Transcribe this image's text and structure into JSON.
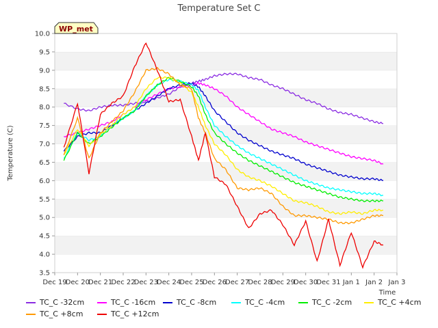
{
  "chart_data": {
    "type": "line",
    "title": "Temperature Set C",
    "badge": "WP_met",
    "xlabel": "Time",
    "ylabel": "Temperature (C)",
    "ylim": [
      3.5,
      10.0
    ],
    "xlim": [
      "Dec 19",
      "Jan 3"
    ],
    "grid": "horizontal bands",
    "legend": "bottom",
    "x_ticks": [
      "Dec 19",
      "Dec 20",
      "Dec 21",
      "Dec 22",
      "Dec 23",
      "Dec 24",
      "Dec 25",
      "Dec 26",
      "Dec 27",
      "Dec 28",
      "Dec 29",
      "Dec 30",
      "Dec 31",
      "Jan 1",
      "Jan 2",
      "Jan 3"
    ],
    "y_ticks": [
      "3.5",
      "4.0",
      "4.5",
      "5.0",
      "5.5",
      "6.0",
      "6.5",
      "7.0",
      "7.5",
      "8.0",
      "8.5",
      "9.0",
      "9.5",
      "10.0"
    ],
    "x_days": [
      0.4,
      1.0,
      1.5,
      2.0,
      2.5,
      3.0,
      3.5,
      4.0,
      4.5,
      5.0,
      5.5,
      6.0,
      6.3,
      6.6,
      7.0,
      7.5,
      8.0,
      8.5,
      9.0,
      9.5,
      10.0,
      10.5,
      11.0,
      11.5,
      12.0,
      12.5,
      13.0,
      13.5,
      14.0,
      14.4
    ],
    "series": [
      {
        "name": "TC_C -32cm",
        "color": "#8a2be2",
        "values": [
          8.1,
          7.95,
          7.9,
          8.0,
          8.05,
          8.05,
          8.1,
          8.15,
          8.25,
          8.35,
          8.55,
          8.65,
          8.7,
          8.75,
          8.85,
          8.9,
          8.9,
          8.8,
          8.75,
          8.6,
          8.5,
          8.35,
          8.2,
          8.1,
          7.95,
          7.85,
          7.8,
          7.7,
          7.6,
          7.55
        ]
      },
      {
        "name": "TC_C -16cm",
        "color": "#ff00ff",
        "values": [
          7.2,
          7.3,
          7.4,
          7.5,
          7.6,
          7.8,
          8.0,
          8.2,
          8.35,
          8.5,
          8.55,
          8.6,
          8.65,
          8.6,
          8.5,
          8.3,
          8.0,
          7.8,
          7.6,
          7.4,
          7.3,
          7.2,
          7.05,
          6.95,
          6.85,
          6.75,
          6.65,
          6.6,
          6.55,
          6.45
        ]
      },
      {
        "name": "TC_C -8cm",
        "color": "#0000cd",
        "values": [
          6.8,
          7.2,
          7.3,
          7.3,
          7.5,
          7.7,
          7.9,
          8.1,
          8.3,
          8.5,
          8.6,
          8.65,
          8.55,
          8.3,
          7.9,
          7.6,
          7.3,
          7.1,
          6.95,
          6.8,
          6.7,
          6.6,
          6.45,
          6.35,
          6.25,
          6.15,
          6.1,
          6.05,
          6.05,
          6.0
        ]
      },
      {
        "name": "TC_C -4cm",
        "color": "#00ffff",
        "values": [
          6.6,
          7.3,
          7.1,
          7.2,
          7.5,
          7.7,
          7.9,
          8.3,
          8.6,
          8.75,
          8.7,
          8.6,
          8.45,
          8.0,
          7.5,
          7.2,
          6.95,
          6.75,
          6.6,
          6.45,
          6.3,
          6.15,
          6.0,
          5.9,
          5.8,
          5.75,
          5.7,
          5.65,
          5.65,
          5.6
        ]
      },
      {
        "name": "TC_C -2cm",
        "color": "#00ee00",
        "values": [
          6.55,
          7.3,
          7.0,
          7.2,
          7.45,
          7.7,
          7.9,
          8.3,
          8.6,
          8.8,
          8.7,
          8.55,
          8.3,
          7.8,
          7.3,
          7.0,
          6.75,
          6.55,
          6.4,
          6.25,
          6.1,
          5.95,
          5.85,
          5.75,
          5.65,
          5.55,
          5.5,
          5.45,
          5.45,
          5.45
        ]
      },
      {
        "name": "TC_C +4cm",
        "color": "#ffee00",
        "values": [
          6.7,
          7.4,
          6.95,
          7.25,
          7.5,
          7.8,
          8.0,
          8.5,
          8.8,
          8.8,
          8.65,
          8.4,
          8.0,
          7.5,
          7.0,
          6.7,
          6.3,
          6.1,
          6.0,
          5.85,
          5.65,
          5.45,
          5.4,
          5.3,
          5.15,
          5.1,
          5.15,
          5.1,
          5.2,
          5.2
        ]
      },
      {
        "name": "TC_C +8cm",
        "color": "#ff9900",
        "values": [
          6.7,
          7.7,
          6.6,
          7.3,
          7.6,
          7.9,
          8.4,
          9.0,
          9.05,
          8.9,
          8.6,
          8.5,
          7.7,
          7.3,
          6.6,
          6.3,
          5.8,
          5.75,
          5.8,
          5.65,
          5.3,
          5.05,
          5.05,
          5.0,
          4.95,
          4.85,
          4.85,
          4.95,
          5.05,
          5.05
        ]
      },
      {
        "name": "TC_C +12cm",
        "color": "#ee0000",
        "values": [
          6.9,
          8.1,
          6.2,
          7.8,
          8.1,
          8.3,
          9.1,
          9.75,
          9.0,
          8.15,
          8.2,
          7.2,
          6.55,
          7.3,
          6.1,
          5.9,
          5.3,
          4.7,
          5.1,
          5.2,
          4.8,
          4.25,
          4.9,
          3.8,
          4.95,
          3.7,
          4.6,
          3.65,
          4.35,
          4.25
        ]
      }
    ]
  }
}
